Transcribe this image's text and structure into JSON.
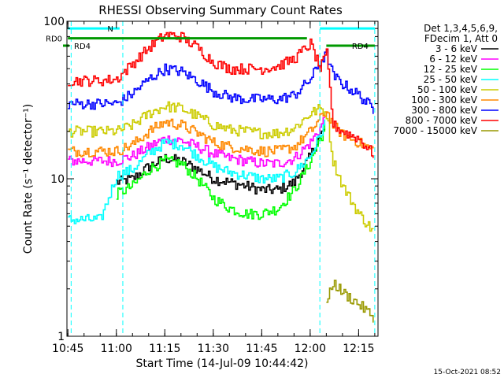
{
  "chart_data": {
    "type": "line",
    "title": "RHESSI Observing Summary Count Rates",
    "xlabel": "Start Time (14-Jul-09 10:44:42)",
    "ylabel": "Count Rate (s⁻¹ detector⁻¹)",
    "x_axis": {
      "min": "10:44:42",
      "max": "12:21:00",
      "ticks": [
        "10:45",
        "11:00",
        "11:15",
        "11:30",
        "11:45",
        "12:00",
        "12:15"
      ]
    },
    "y_axis": {
      "scale": "log",
      "min": 1,
      "max": 100,
      "ticks": [
        1,
        10,
        100
      ]
    },
    "grid": false,
    "legend": {
      "placement": "right",
      "header": [
        "Det 1,3,4,5,6,9,",
        "FDecim 1, Att 0"
      ]
    },
    "x_times": [
      "10:45",
      "10:50",
      "10:55",
      "11:00",
      "11:05",
      "11:10",
      "11:15",
      "11:20",
      "11:25",
      "11:30",
      "11:35",
      "11:40",
      "11:45",
      "11:50",
      "11:55",
      "12:00",
      "12:03",
      "12:05",
      "12:07",
      "12:10",
      "12:15",
      "12:20"
    ],
    "series": [
      {
        "name": "3 - 6 keV",
        "color": "#000000",
        "values": [
          null,
          null,
          null,
          9.5,
          10,
          12,
          13.5,
          13,
          11.5,
          10,
          9.5,
          9,
          8.5,
          8.5,
          9.5,
          14,
          19,
          21,
          null,
          null,
          null,
          null
        ]
      },
      {
        "name": "6 - 12 keV",
        "color": "#ff00ff",
        "values": [
          13,
          13,
          13,
          13,
          14,
          16,
          18,
          17.5,
          16,
          14.5,
          13.5,
          13,
          12.5,
          12.5,
          13.5,
          17,
          21,
          26,
          null,
          null,
          null,
          null
        ]
      },
      {
        "name": "12 - 25 keV",
        "color": "#00ff00",
        "values": [
          null,
          null,
          null,
          8,
          9,
          11.5,
          13,
          12.5,
          10,
          7.5,
          6.5,
          6,
          6,
          6.5,
          8.5,
          13,
          18,
          22,
          null,
          null,
          null,
          null
        ]
      },
      {
        "name": "25 - 50 keV",
        "color": "#00ffff",
        "values": [
          5.5,
          5.5,
          5.5,
          10.5,
          11.5,
          14.5,
          17,
          16.5,
          14,
          12,
          11,
          10.5,
          10,
          10,
          11,
          14,
          19,
          24,
          null,
          null,
          null,
          null
        ]
      },
      {
        "name": "50 - 100 keV",
        "color": "#cccc00",
        "values": [
          20,
          20,
          20,
          20,
          22,
          26,
          29,
          28,
          25,
          22,
          20.5,
          20,
          19.5,
          19.5,
          21,
          26,
          28,
          26,
          13,
          9,
          6,
          4.5
        ]
      },
      {
        "name": "100 - 300 keV",
        "color": "#ff8800",
        "values": [
          15,
          15,
          15,
          15,
          16.5,
          20,
          23,
          22,
          19.5,
          17,
          16,
          15.5,
          15,
          15,
          16,
          20,
          24,
          27,
          22,
          19,
          17,
          15
        ]
      },
      {
        "name": "300 - 800 keV",
        "color": "#0000ff",
        "values": [
          30,
          30,
          30,
          30,
          35,
          43,
          50,
          48,
          42,
          36,
          33,
          32,
          32,
          32,
          34,
          43,
          55,
          62,
          45,
          40,
          34,
          27
        ]
      },
      {
        "name": "800 - 7000 keV",
        "color": "#ff0000",
        "values": [
          42,
          42,
          42,
          43,
          54,
          68,
          82,
          80,
          68,
          55,
          50,
          50,
          50,
          52,
          58,
          72,
          50,
          62,
          22,
          20,
          18,
          14
        ]
      },
      {
        "name": "7000 - 15000 keV",
        "color": "#999900",
        "values": [
          null,
          null,
          null,
          null,
          null,
          null,
          null,
          null,
          null,
          null,
          null,
          null,
          null,
          null,
          null,
          null,
          null,
          1.6,
          2.2,
          1.9,
          1.6,
          1.3
        ]
      }
    ],
    "annotations": [
      {
        "label": "RD0",
        "color": "#009900",
        "value": 78,
        "from": "10:45",
        "to": "11:59"
      },
      {
        "label": "RD4",
        "color": "#009900",
        "value": 70,
        "from": "12:05",
        "to": "12:20"
      },
      {
        "label": "N",
        "color": "#00ffff",
        "value": 90,
        "from": "10:45",
        "to": "11:01"
      },
      {
        "label": "",
        "color": "#00ffff",
        "value": 90,
        "from": "12:03",
        "to": "12:20"
      }
    ],
    "vertical_markers": [
      "10:46",
      "11:02",
      "12:03",
      "12:20"
    ]
  },
  "footer": {
    "timestamp": "15-Oct-2021 08:52"
  }
}
